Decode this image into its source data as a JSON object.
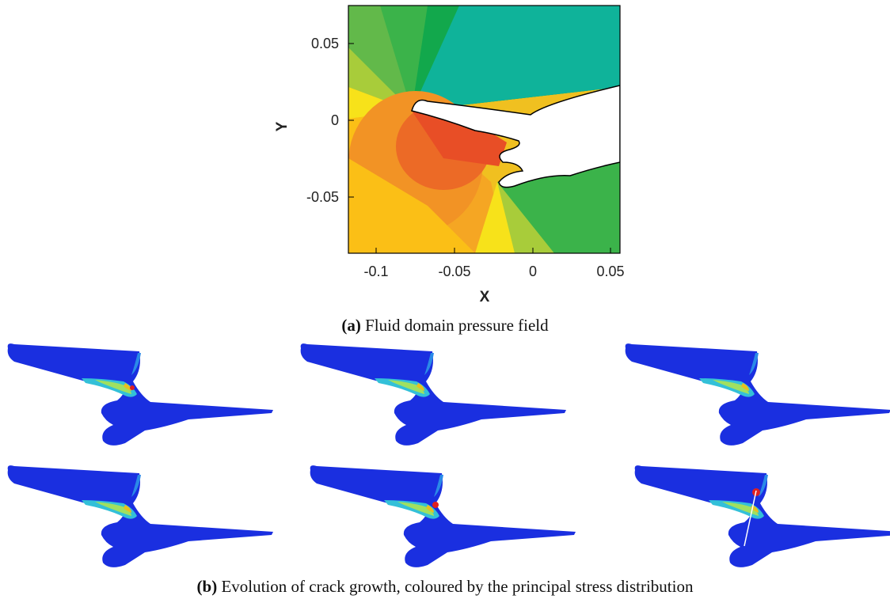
{
  "figure_a": {
    "x_label": "X",
    "y_label": "Y",
    "x_ticks": [
      "-0.1",
      "-0.05",
      "0",
      "0.05"
    ],
    "y_ticks": [
      "0.05",
      "0",
      "-0.05"
    ],
    "caption": {
      "label": "(a)",
      "text": "Fluid domain pressure field"
    }
  },
  "figure_b": {
    "caption": {
      "label": "(b)",
      "text": "Evolution of crack growth, coloured by the principal stress distribution"
    }
  }
}
